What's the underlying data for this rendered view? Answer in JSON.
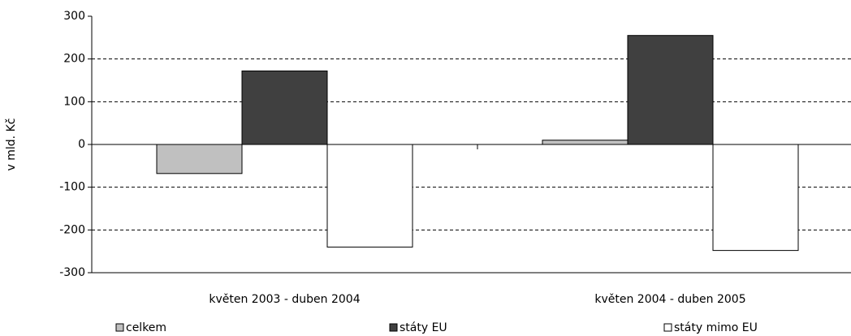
{
  "chart_data": {
    "type": "bar",
    "y_label": "v mld. Kč",
    "categories": [
      "květen 2003 - duben 2004",
      "květen 2004 - duben 2005"
    ],
    "series": [
      {
        "name": "celkem",
        "color": "#c0c0c0",
        "values": [
          -68,
          10
        ]
      },
      {
        "name": "státy EU",
        "color": "#404040",
        "values": [
          172,
          255
        ]
      },
      {
        "name": "státy mimo EU",
        "color": "#ffffff",
        "values": [
          -240,
          -248
        ]
      }
    ],
    "ylim": [
      -300,
      300
    ],
    "yticks": [
      -300,
      -200,
      -100,
      0,
      100,
      200,
      300
    ],
    "grid": true,
    "legend": "bottom"
  }
}
